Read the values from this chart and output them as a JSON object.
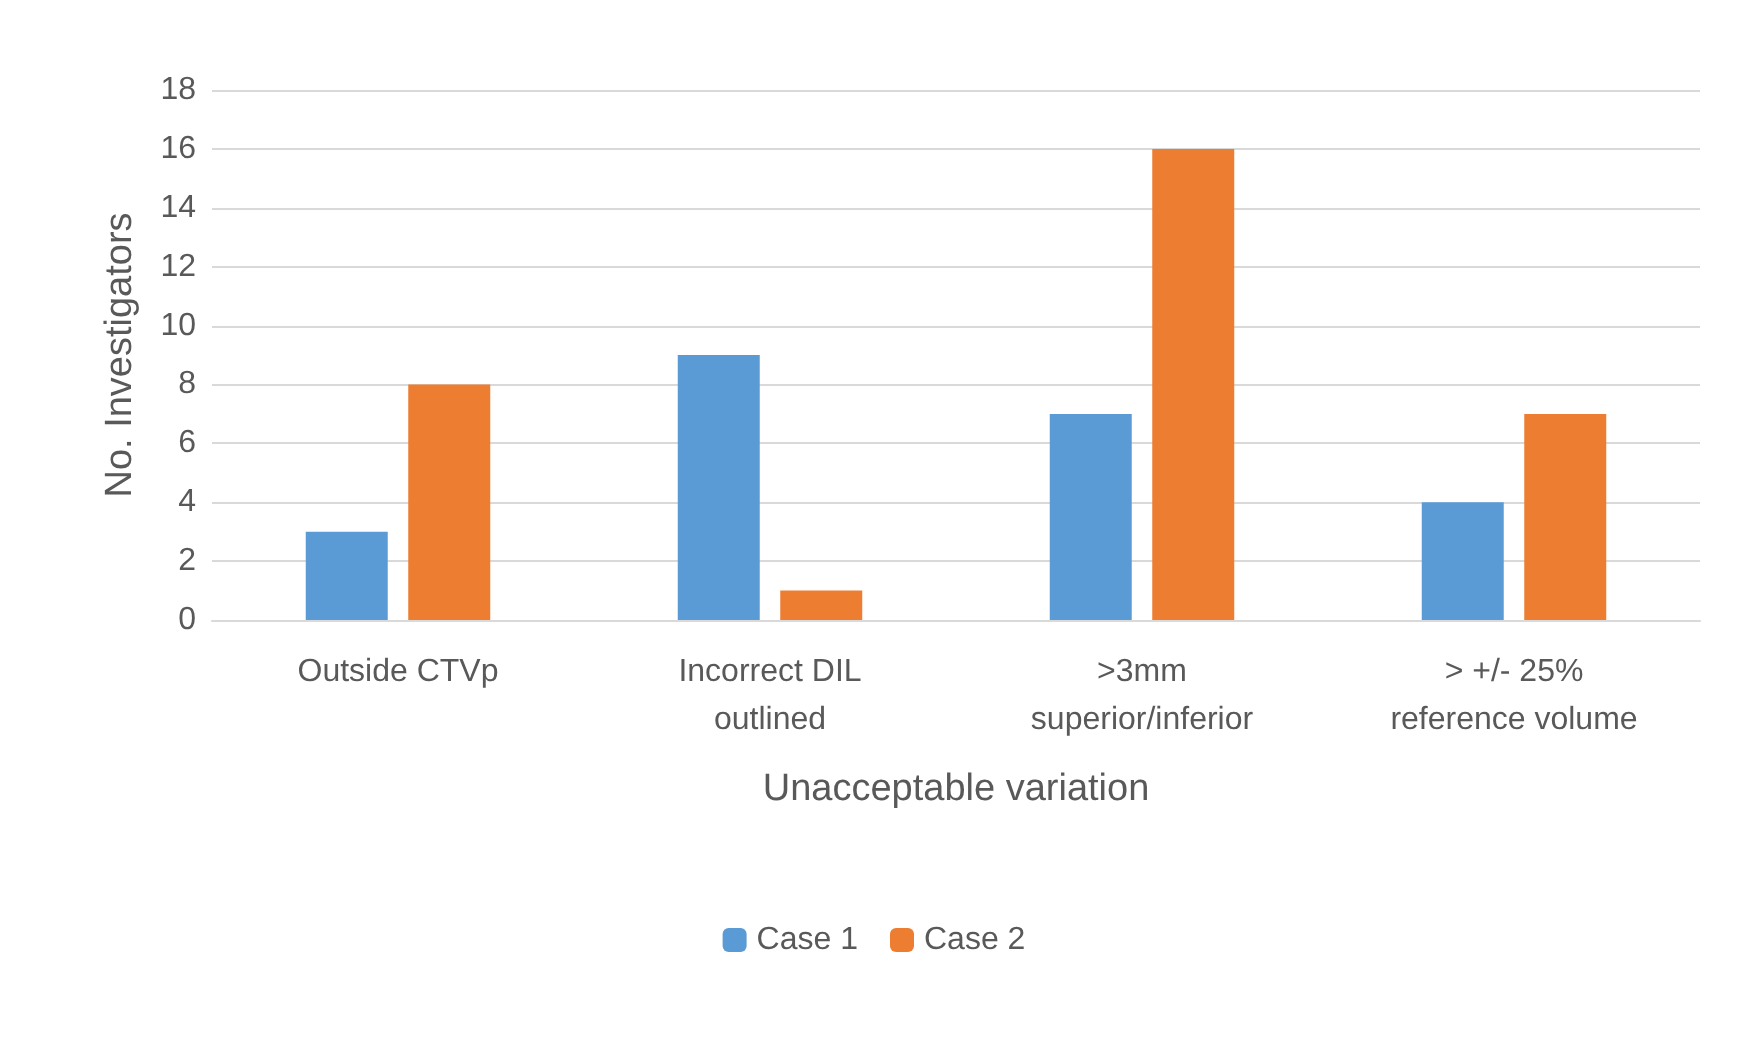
{
  "chart_data": {
    "type": "bar",
    "xlabel": "Unacceptable variation",
    "ylabel": "No. Investigators",
    "categories": [
      "Outside CTVp",
      "Incorrect DIL\noutlined",
      ">3mm\nsuperior/inferior",
      "> +/- 25%\nreference volume"
    ],
    "series": [
      {
        "name": "Case 1",
        "color": "#5b9bd5",
        "values": [
          3,
          9,
          7,
          4
        ]
      },
      {
        "name": "Case 2",
        "color": "#ed7d31",
        "values": [
          8,
          1,
          16,
          7
        ]
      }
    ],
    "ylim": [
      0,
      18
    ],
    "yticks": [
      0,
      2,
      4,
      6,
      8,
      10,
      12,
      14,
      16,
      18
    ],
    "grid": "y",
    "legend": "bottom"
  }
}
